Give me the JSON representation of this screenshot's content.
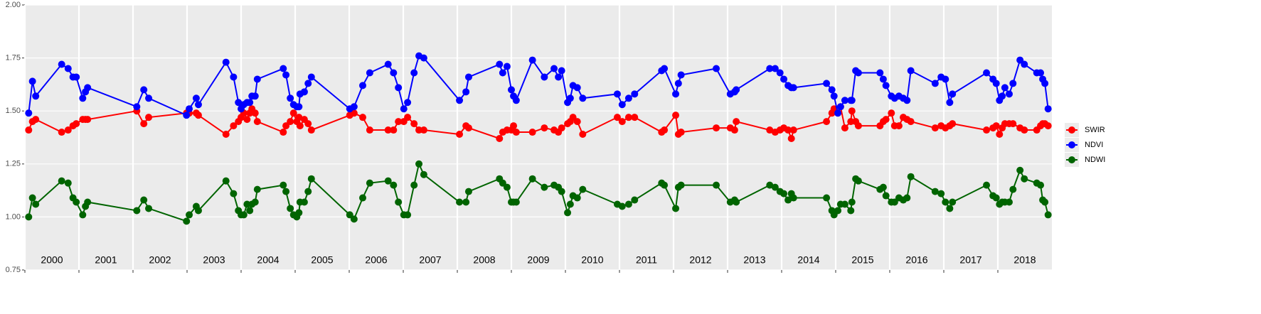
{
  "chart_data": {
    "type": "line",
    "x": [
      2000.07,
      2000.14,
      2000.2,
      2000.68,
      2000.8,
      2000.89,
      2000.95,
      2001.07,
      2001.12,
      2001.16,
      2002.07,
      2002.2,
      2002.29,
      2002.99,
      2003.04,
      2003.17,
      2003.21,
      2003.72,
      2003.86,
      2003.95,
      2004.0,
      2004.05,
      2004.11,
      2004.16,
      2004.2,
      2004.26,
      2004.3,
      2004.78,
      2004.83,
      2004.91,
      2004.97,
      2005.03,
      2005.07,
      2005.09,
      2005.17,
      2005.24,
      2005.3,
      2006.01,
      2006.09,
      2006.25,
      2006.38,
      2006.72,
      2006.82,
      2006.91,
      2007.01,
      2007.08,
      2007.2,
      2007.29,
      2007.38,
      2008.04,
      2008.16,
      2008.21,
      2008.78,
      2008.84,
      2008.92,
      2009.0,
      2009.04,
      2009.09,
      2009.39,
      2009.61,
      2009.79,
      2009.87,
      2009.93,
      2010.04,
      2010.09,
      2010.14,
      2010.22,
      2010.32,
      2010.96,
      2011.05,
      2011.17,
      2011.28,
      2011.78,
      2011.83,
      2012.04,
      2012.09,
      2012.14,
      2012.79,
      2013.05,
      2013.13,
      2013.16,
      2013.78,
      2013.88,
      2013.97,
      2014.04,
      2014.12,
      2014.18,
      2014.22,
      2014.83,
      2014.93,
      2014.97,
      2015.04,
      2015.09,
      2015.17,
      2015.28,
      2015.3,
      2015.37,
      2015.42,
      2015.82,
      2015.88,
      2015.93,
      2016.03,
      2016.09,
      2016.17,
      2016.25,
      2016.32,
      2016.39,
      2016.84,
      2016.95,
      2017.03,
      2017.11,
      2017.16,
      2017.79,
      2017.91,
      2017.97,
      2018.03,
      2018.08,
      2018.13,
      2018.21,
      2018.28,
      2018.41,
      2018.49,
      2018.72,
      2018.79,
      2018.83,
      2018.87,
      2018.93
    ],
    "series": [
      {
        "name": "SWIR",
        "color": "#ff0000",
        "values": [
          1.41,
          1.45,
          1.46,
          1.4,
          1.41,
          1.43,
          1.44,
          1.46,
          1.46,
          1.46,
          1.5,
          1.44,
          1.47,
          1.49,
          1.49,
          1.49,
          1.48,
          1.39,
          1.43,
          1.45,
          1.47,
          1.49,
          1.46,
          1.49,
          1.51,
          1.49,
          1.45,
          1.4,
          1.43,
          1.45,
          1.49,
          1.45,
          1.47,
          1.43,
          1.46,
          1.44,
          1.41,
          1.48,
          1.49,
          1.47,
          1.41,
          1.41,
          1.41,
          1.45,
          1.45,
          1.47,
          1.44,
          1.41,
          1.41,
          1.39,
          1.43,
          1.42,
          1.37,
          1.4,
          1.41,
          1.41,
          1.43,
          1.4,
          1.4,
          1.42,
          1.41,
          1.4,
          1.42,
          1.44,
          1.45,
          1.47,
          1.45,
          1.39,
          1.47,
          1.45,
          1.47,
          1.47,
          1.4,
          1.41,
          1.48,
          1.39,
          1.4,
          1.42,
          1.42,
          1.41,
          1.45,
          1.41,
          1.4,
          1.41,
          1.42,
          1.41,
          1.37,
          1.41,
          1.45,
          1.49,
          1.51,
          1.49,
          1.52,
          1.42,
          1.45,
          1.5,
          1.45,
          1.43,
          1.43,
          1.45,
          1.46,
          1.49,
          1.43,
          1.43,
          1.47,
          1.46,
          1.45,
          1.42,
          1.43,
          1.42,
          1.43,
          1.44,
          1.41,
          1.42,
          1.43,
          1.39,
          1.42,
          1.44,
          1.44,
          1.44,
          1.42,
          1.41,
          1.41,
          1.43,
          1.44,
          1.44,
          1.43
        ]
      },
      {
        "name": "NDVI",
        "color": "#0000ff",
        "values": [
          1.49,
          1.64,
          1.57,
          1.72,
          1.7,
          1.66,
          1.66,
          1.56,
          1.59,
          1.61,
          1.52,
          1.6,
          1.56,
          1.48,
          1.51,
          1.56,
          1.53,
          1.73,
          1.66,
          1.54,
          1.51,
          1.53,
          1.54,
          1.54,
          1.57,
          1.57,
          1.65,
          1.7,
          1.67,
          1.56,
          1.53,
          1.52,
          1.52,
          1.58,
          1.59,
          1.63,
          1.66,
          1.51,
          1.52,
          1.62,
          1.68,
          1.72,
          1.68,
          1.61,
          1.51,
          1.54,
          1.68,
          1.76,
          1.75,
          1.55,
          1.59,
          1.66,
          1.72,
          1.68,
          1.71,
          1.6,
          1.57,
          1.55,
          1.74,
          1.66,
          1.7,
          1.66,
          1.69,
          1.54,
          1.56,
          1.62,
          1.61,
          1.56,
          1.58,
          1.53,
          1.56,
          1.58,
          1.69,
          1.7,
          1.58,
          1.63,
          1.67,
          1.7,
          1.58,
          1.59,
          1.6,
          1.7,
          1.7,
          1.68,
          1.65,
          1.62,
          1.61,
          1.61,
          1.63,
          1.6,
          1.57,
          1.49,
          1.52,
          1.55,
          1.55,
          1.55,
          1.69,
          1.68,
          1.68,
          1.65,
          1.62,
          1.57,
          1.56,
          1.57,
          1.56,
          1.55,
          1.69,
          1.63,
          1.66,
          1.65,
          1.54,
          1.58,
          1.68,
          1.65,
          1.63,
          1.55,
          1.57,
          1.61,
          1.58,
          1.63,
          1.74,
          1.72,
          1.68,
          1.68,
          1.65,
          1.63,
          1.51
        ]
      },
      {
        "name": "NDWI",
        "color": "#006400",
        "values": [
          1.0,
          1.09,
          1.06,
          1.17,
          1.16,
          1.09,
          1.07,
          1.01,
          1.05,
          1.07,
          1.03,
          1.08,
          1.04,
          0.98,
          1.01,
          1.05,
          1.03,
          1.17,
          1.11,
          1.03,
          1.01,
          1.01,
          1.06,
          1.03,
          1.06,
          1.07,
          1.13,
          1.15,
          1.12,
          1.04,
          1.01,
          1.0,
          1.02,
          1.07,
          1.07,
          1.12,
          1.18,
          1.01,
          0.99,
          1.09,
          1.16,
          1.17,
          1.15,
          1.07,
          1.01,
          1.01,
          1.15,
          1.25,
          1.2,
          1.07,
          1.07,
          1.12,
          1.18,
          1.16,
          1.14,
          1.07,
          1.07,
          1.07,
          1.18,
          1.14,
          1.15,
          1.14,
          1.12,
          1.02,
          1.06,
          1.1,
          1.09,
          1.13,
          1.06,
          1.05,
          1.06,
          1.08,
          1.16,
          1.15,
          1.04,
          1.14,
          1.15,
          1.15,
          1.07,
          1.08,
          1.07,
          1.15,
          1.14,
          1.12,
          1.11,
          1.08,
          1.11,
          1.09,
          1.09,
          1.03,
          1.01,
          1.03,
          1.06,
          1.06,
          1.03,
          1.07,
          1.18,
          1.17,
          1.13,
          1.14,
          1.1,
          1.07,
          1.07,
          1.09,
          1.08,
          1.09,
          1.19,
          1.12,
          1.11,
          1.07,
          1.04,
          1.07,
          1.15,
          1.1,
          1.09,
          1.06,
          1.07,
          1.07,
          1.07,
          1.13,
          1.22,
          1.18,
          1.16,
          1.15,
          1.08,
          1.07,
          1.01
        ]
      }
    ],
    "xlim": [
      2000,
      2019
    ],
    "year_labels": [
      2000,
      2001,
      2002,
      2003,
      2004,
      2005,
      2006,
      2007,
      2008,
      2009,
      2010,
      2011,
      2012,
      2013,
      2014,
      2015,
      2016,
      2017,
      2018
    ],
    "ylim": [
      0.75,
      2.0
    ],
    "yticks": [
      0.75,
      {
        "value": 1.0,
        "label": "1.00"
      },
      1.25,
      {
        "value": 1.5,
        "label": "1.50"
      },
      1.75,
      {
        "value": 2.0,
        "label": "2.00"
      }
    ],
    "grid": true,
    "legend": "right"
  }
}
